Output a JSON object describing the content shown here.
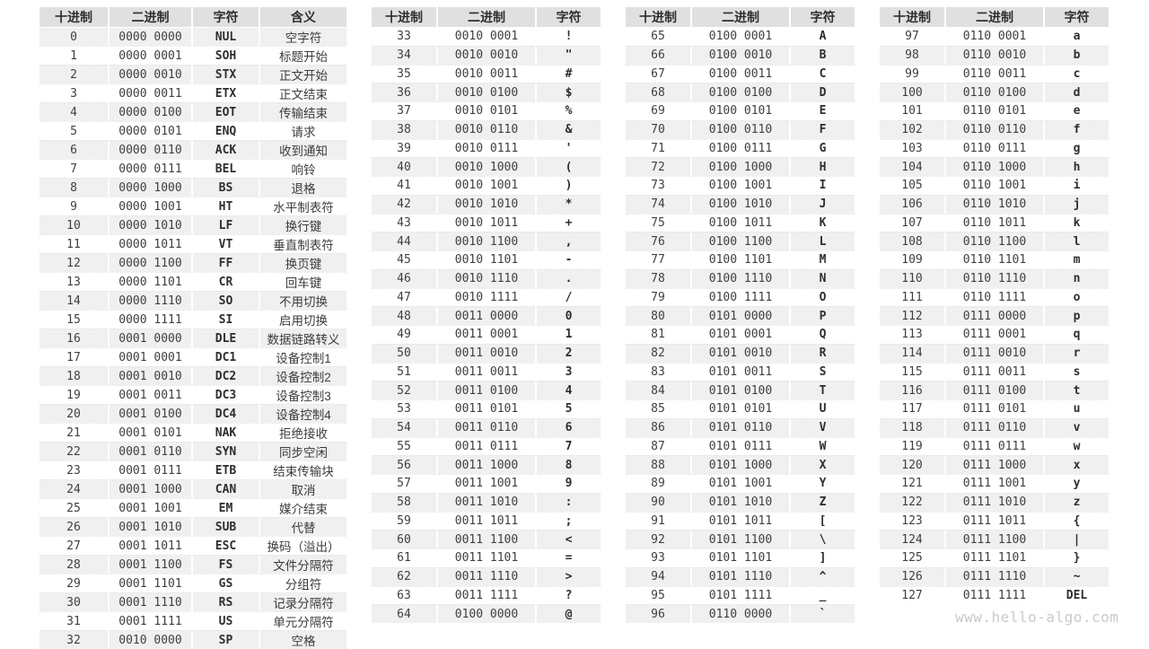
{
  "watermark": "www.hello-algo.com",
  "colors": {
    "header_bg": "#e0e0e0",
    "stripe_bg": "#f0f0f0",
    "cell_bg": "#ffffff",
    "text": "#3f3f3f",
    "bold_text": "#2e2e2e",
    "watermark_text": "#c9c9c9"
  },
  "chart_data": [
    {
      "type": "table",
      "columns": [
        "十进制",
        "二进制",
        "字符",
        "含义"
      ],
      "rows": [
        [
          0,
          "0000 0000",
          "NUL",
          "空字符"
        ],
        [
          1,
          "0000 0001",
          "SOH",
          "标题开始"
        ],
        [
          2,
          "0000 0010",
          "STX",
          "正文开始"
        ],
        [
          3,
          "0000 0011",
          "ETX",
          "正文结束"
        ],
        [
          4,
          "0000 0100",
          "EOT",
          "传输结束"
        ],
        [
          5,
          "0000 0101",
          "ENQ",
          "请求"
        ],
        [
          6,
          "0000 0110",
          "ACK",
          "收到通知"
        ],
        [
          7,
          "0000 0111",
          "BEL",
          "响铃"
        ],
        [
          8,
          "0000 1000",
          "BS",
          "退格"
        ],
        [
          9,
          "0000 1001",
          "HT",
          "水平制表符"
        ],
        [
          10,
          "0000 1010",
          "LF",
          "换行键"
        ],
        [
          11,
          "0000 1011",
          "VT",
          "垂直制表符"
        ],
        [
          12,
          "0000 1100",
          "FF",
          "换页键"
        ],
        [
          13,
          "0000 1101",
          "CR",
          "回车键"
        ],
        [
          14,
          "0000 1110",
          "SO",
          "不用切换"
        ],
        [
          15,
          "0000 1111",
          "SI",
          "启用切换"
        ],
        [
          16,
          "0001 0000",
          "DLE",
          "数据链路转义"
        ],
        [
          17,
          "0001 0001",
          "DC1",
          "设备控制1"
        ],
        [
          18,
          "0001 0010",
          "DC2",
          "设备控制2"
        ],
        [
          19,
          "0001 0011",
          "DC3",
          "设备控制3"
        ],
        [
          20,
          "0001 0100",
          "DC4",
          "设备控制4"
        ],
        [
          21,
          "0001 0101",
          "NAK",
          "拒绝接收"
        ],
        [
          22,
          "0001 0110",
          "SYN",
          "同步空闲"
        ],
        [
          23,
          "0001 0111",
          "ETB",
          "结束传输块"
        ],
        [
          24,
          "0001 1000",
          "CAN",
          "取消"
        ],
        [
          25,
          "0001 1001",
          "EM",
          "媒介结束"
        ],
        [
          26,
          "0001 1010",
          "SUB",
          "代替"
        ],
        [
          27,
          "0001 1011",
          "ESC",
          "换码（溢出）"
        ],
        [
          28,
          "0001 1100",
          "FS",
          "文件分隔符"
        ],
        [
          29,
          "0001 1101",
          "GS",
          "分组符"
        ],
        [
          30,
          "0001 1110",
          "RS",
          "记录分隔符"
        ],
        [
          31,
          "0001 1111",
          "US",
          "单元分隔符"
        ],
        [
          32,
          "0010 0000",
          "SP",
          "空格"
        ]
      ]
    },
    {
      "type": "table",
      "columns": [
        "十进制",
        "二进制",
        "字符"
      ],
      "rows": [
        [
          33,
          "0010 0001",
          "!"
        ],
        [
          34,
          "0010 0010",
          "\""
        ],
        [
          35,
          "0010 0011",
          "#"
        ],
        [
          36,
          "0010 0100",
          "$"
        ],
        [
          37,
          "0010 0101",
          "%"
        ],
        [
          38,
          "0010 0110",
          "&"
        ],
        [
          39,
          "0010 0111",
          "'"
        ],
        [
          40,
          "0010 1000",
          "("
        ],
        [
          41,
          "0010 1001",
          ")"
        ],
        [
          42,
          "0010 1010",
          "*"
        ],
        [
          43,
          "0010 1011",
          "+"
        ],
        [
          44,
          "0010 1100",
          ","
        ],
        [
          45,
          "0010 1101",
          "-"
        ],
        [
          46,
          "0010 1110",
          "."
        ],
        [
          47,
          "0010 1111",
          "/"
        ],
        [
          48,
          "0011 0000",
          "0"
        ],
        [
          49,
          "0011 0001",
          "1"
        ],
        [
          50,
          "0011 0010",
          "2"
        ],
        [
          51,
          "0011 0011",
          "3"
        ],
        [
          52,
          "0011 0100",
          "4"
        ],
        [
          53,
          "0011 0101",
          "5"
        ],
        [
          54,
          "0011 0110",
          "6"
        ],
        [
          55,
          "0011 0111",
          "7"
        ],
        [
          56,
          "0011 1000",
          "8"
        ],
        [
          57,
          "0011 1001",
          "9"
        ],
        [
          58,
          "0011 1010",
          ":"
        ],
        [
          59,
          "0011 1011",
          ";"
        ],
        [
          60,
          "0011 1100",
          "<"
        ],
        [
          61,
          "0011 1101",
          "="
        ],
        [
          62,
          "0011 1110",
          ">"
        ],
        [
          63,
          "0011 1111",
          "?"
        ],
        [
          64,
          "0100 0000",
          "@"
        ]
      ]
    },
    {
      "type": "table",
      "columns": [
        "十进制",
        "二进制",
        "字符"
      ],
      "rows": [
        [
          65,
          "0100 0001",
          "A"
        ],
        [
          66,
          "0100 0010",
          "B"
        ],
        [
          67,
          "0100 0011",
          "C"
        ],
        [
          68,
          "0100 0100",
          "D"
        ],
        [
          69,
          "0100 0101",
          "E"
        ],
        [
          70,
          "0100 0110",
          "F"
        ],
        [
          71,
          "0100 0111",
          "G"
        ],
        [
          72,
          "0100 1000",
          "H"
        ],
        [
          73,
          "0100 1001",
          "I"
        ],
        [
          74,
          "0100 1010",
          "J"
        ],
        [
          75,
          "0100 1011",
          "K"
        ],
        [
          76,
          "0100 1100",
          "L"
        ],
        [
          77,
          "0100 1101",
          "M"
        ],
        [
          78,
          "0100 1110",
          "N"
        ],
        [
          79,
          "0100 1111",
          "O"
        ],
        [
          80,
          "0101 0000",
          "P"
        ],
        [
          81,
          "0101 0001",
          "Q"
        ],
        [
          82,
          "0101 0010",
          "R"
        ],
        [
          83,
          "0101 0011",
          "S"
        ],
        [
          84,
          "0101 0100",
          "T"
        ],
        [
          85,
          "0101 0101",
          "U"
        ],
        [
          86,
          "0101 0110",
          "V"
        ],
        [
          87,
          "0101 0111",
          "W"
        ],
        [
          88,
          "0101 1000",
          "X"
        ],
        [
          89,
          "0101 1001",
          "Y"
        ],
        [
          90,
          "0101 1010",
          "Z"
        ],
        [
          91,
          "0101 1011",
          "["
        ],
        [
          92,
          "0101 1100",
          "\\"
        ],
        [
          93,
          "0101 1101",
          "]"
        ],
        [
          94,
          "0101 1110",
          "^"
        ],
        [
          95,
          "0101 1111",
          "_"
        ],
        [
          96,
          "0110 0000",
          "`"
        ]
      ]
    },
    {
      "type": "table",
      "columns": [
        "十进制",
        "二进制",
        "字符"
      ],
      "rows": [
        [
          97,
          "0110 0001",
          "a"
        ],
        [
          98,
          "0110 0010",
          "b"
        ],
        [
          99,
          "0110 0011",
          "c"
        ],
        [
          100,
          "0110 0100",
          "d"
        ],
        [
          101,
          "0110 0101",
          "e"
        ],
        [
          102,
          "0110 0110",
          "f"
        ],
        [
          103,
          "0110 0111",
          "g"
        ],
        [
          104,
          "0110 1000",
          "h"
        ],
        [
          105,
          "0110 1001",
          "i"
        ],
        [
          106,
          "0110 1010",
          "j"
        ],
        [
          107,
          "0110 1011",
          "k"
        ],
        [
          108,
          "0110 1100",
          "l"
        ],
        [
          109,
          "0110 1101",
          "m"
        ],
        [
          110,
          "0110 1110",
          "n"
        ],
        [
          111,
          "0110 1111",
          "o"
        ],
        [
          112,
          "0111 0000",
          "p"
        ],
        [
          113,
          "0111 0001",
          "q"
        ],
        [
          114,
          "0111 0010",
          "r"
        ],
        [
          115,
          "0111 0011",
          "s"
        ],
        [
          116,
          "0111 0100",
          "t"
        ],
        [
          117,
          "0111 0101",
          "u"
        ],
        [
          118,
          "0111 0110",
          "v"
        ],
        [
          119,
          "0111 0111",
          "w"
        ],
        [
          120,
          "0111 1000",
          "x"
        ],
        [
          121,
          "0111 1001",
          "y"
        ],
        [
          122,
          "0111 1010",
          "z"
        ],
        [
          123,
          "0111 1011",
          "{"
        ],
        [
          124,
          "0111 1100",
          "|"
        ],
        [
          125,
          "0111 1101",
          "}"
        ],
        [
          126,
          "0111 1110",
          "~"
        ],
        [
          127,
          "0111 1111",
          "DEL"
        ]
      ]
    }
  ]
}
